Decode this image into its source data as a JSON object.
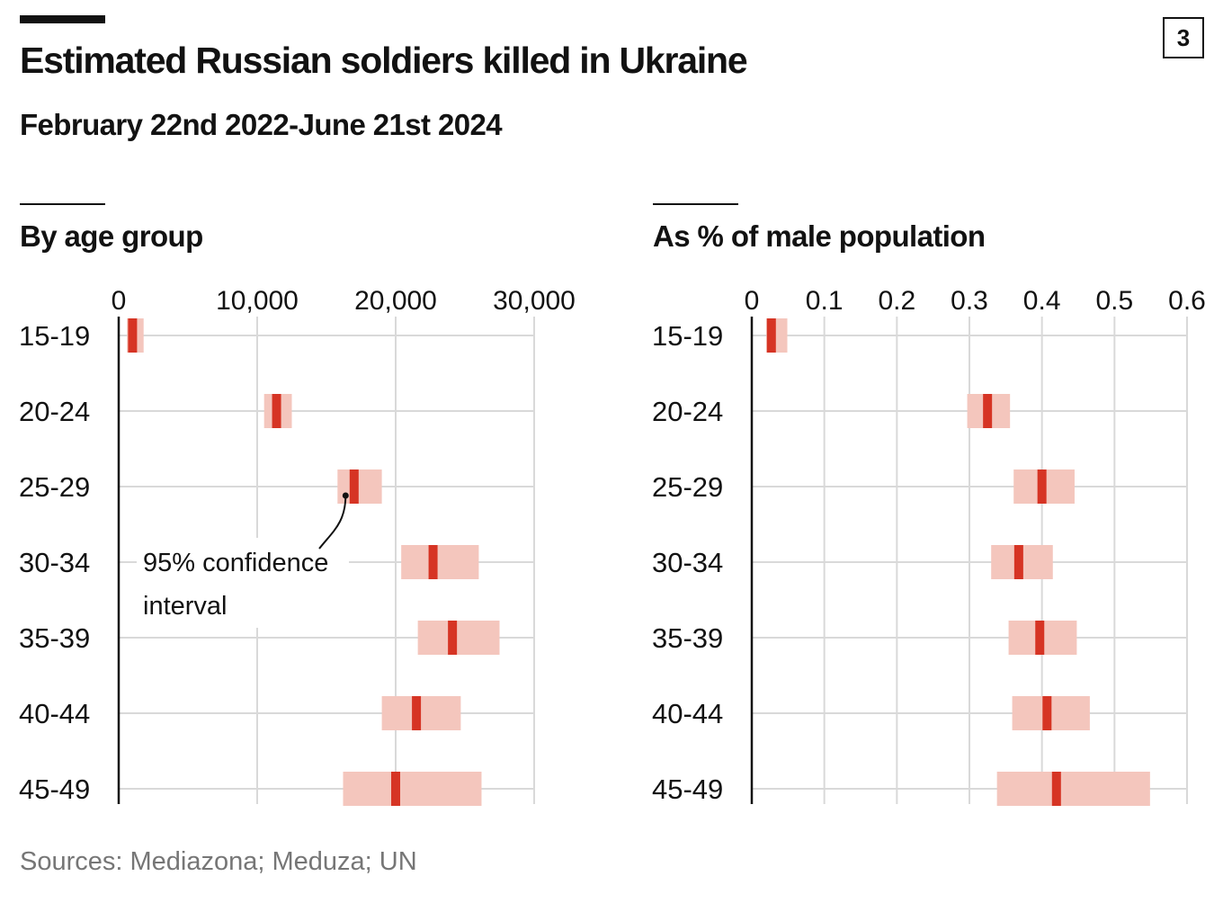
{
  "header": {
    "title": "Estimated Russian soldiers killed in Ukraine",
    "subtitle": "February 22nd 2022-June 21st 2024",
    "badge": "3"
  },
  "footer": {
    "source": "Sources: Mediazona; Meduza; UN"
  },
  "colors": {
    "ci_band": "#f4c6bd",
    "estimate": "#d63424",
    "grid": "#d9d9d9",
    "axis": "#121212",
    "text": "#121212",
    "source_text": "#767676"
  },
  "chart_data": [
    {
      "type": "range",
      "title": "By age group",
      "categories": [
        "15-19",
        "20-24",
        "25-29",
        "30-34",
        "35-39",
        "40-44",
        "45-49"
      ],
      "xlim": [
        0,
        30000
      ],
      "xticks": [
        0,
        10000,
        20000,
        30000
      ],
      "xtick_labels": [
        "0",
        "10,000",
        "20,000",
        "30,000"
      ],
      "grid": true,
      "estimate": [
        1000,
        11400,
        17000,
        22700,
        24100,
        21500,
        20000
      ],
      "ci_low": [
        600,
        10500,
        15800,
        20400,
        21600,
        19000,
        16200
      ],
      "ci_high": [
        1800,
        12500,
        19000,
        26000,
        27500,
        24700,
        26200
      ],
      "annotation": {
        "lines": [
          "95% confidence",
          "interval"
        ],
        "target_category": "25-29"
      }
    },
    {
      "type": "range",
      "title": "As % of male population",
      "categories": [
        "15-19",
        "20-24",
        "25-29",
        "30-34",
        "35-39",
        "40-44",
        "45-49"
      ],
      "xlim": [
        0,
        0.6
      ],
      "xticks": [
        0,
        0.1,
        0.2,
        0.3,
        0.4,
        0.5,
        0.6
      ],
      "xtick_labels": [
        "0",
        "0.1",
        "0.2",
        "0.3",
        "0.4",
        "0.5",
        "0.6"
      ],
      "grid": true,
      "estimate": [
        0.027,
        0.325,
        0.4,
        0.368,
        0.397,
        0.407,
        0.42
      ],
      "ci_low": [
        0.02,
        0.297,
        0.361,
        0.33,
        0.354,
        0.359,
        0.338
      ],
      "ci_high": [
        0.049,
        0.356,
        0.445,
        0.415,
        0.448,
        0.466,
        0.549
      ]
    }
  ]
}
